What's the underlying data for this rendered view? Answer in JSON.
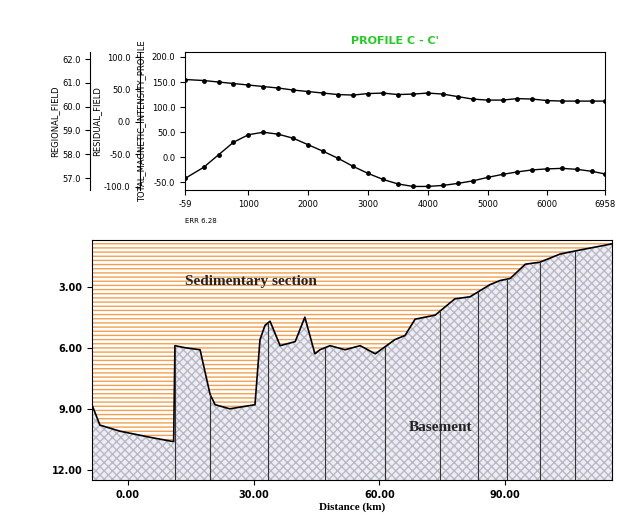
{
  "chart_data": [
    {
      "type": "line",
      "title": "PROFILE C - C'",
      "annotations": [
        "ERR 6.28"
      ],
      "x": [
        -59,
        250,
        500,
        750,
        1000,
        1250,
        1500,
        1750,
        2000,
        2250,
        2500,
        2750,
        3000,
        3250,
        3500,
        3750,
        4000,
        4250,
        4500,
        4750,
        5000,
        5250,
        5500,
        5750,
        6000,
        6250,
        6500,
        6750,
        6958
      ],
      "series": [
        {
          "color": "#000000",
          "marker": "o",
          "line_style": "solid",
          "values": [
            155,
            153,
            150,
            147,
            144,
            141,
            138,
            134,
            131,
            128,
            125,
            124,
            127,
            128,
            125,
            126,
            128,
            126,
            121,
            116,
            114,
            114,
            117,
            116,
            113,
            112,
            112,
            112,
            112
          ]
        },
        {
          "color": "#000000",
          "marker": "o",
          "line_style": "solid",
          "values": [
            -42,
            -20,
            5,
            30,
            45,
            50,
            46,
            38,
            25,
            12,
            -2,
            -18,
            -32,
            -44,
            -53,
            -58,
            -58,
            -56,
            -52,
            -47,
            -40,
            -34,
            -29,
            -25,
            -23,
            -22,
            -24,
            -28,
            -33
          ]
        }
      ],
      "xlim": [
        -59,
        6958
      ],
      "xticks": [
        -59,
        1000,
        2000,
        3000,
        4000,
        5000,
        6000,
        6958
      ],
      "ylabel": "TOTAL_MAGNETIC_INTENSITY_PROFILE",
      "ylim": [
        -65,
        210
      ],
      "yticks": [
        {
          "value": -50,
          "label": "-50.0"
        },
        {
          "value": 0,
          "label": "0.0"
        },
        {
          "value": 50,
          "label": "50.0"
        },
        {
          "value": 100,
          "label": "100.0"
        },
        {
          "value": 150,
          "label": "150.0"
        },
        {
          "value": 200,
          "label": "200.0"
        }
      ],
      "y2label": "RESIDUAL_FIELD",
      "y2lim": [
        -105,
        108
      ],
      "y2ticks": [
        {
          "value": -100,
          "label": "-100.0"
        },
        {
          "value": -50,
          "label": "-50.0"
        },
        {
          "value": 0,
          "label": "0.0"
        },
        {
          "value": 50,
          "label": "50.0"
        },
        {
          "value": 100,
          "label": "100.0"
        }
      ],
      "y3label": "REGIONAL_FIELD",
      "y3lim": [
        56.5,
        62.3
      ],
      "y3ticks": [
        {
          "value": 57,
          "label": "57.0"
        },
        {
          "value": 58,
          "label": "58.0"
        },
        {
          "value": 59,
          "label": "59.0"
        },
        {
          "value": 60,
          "label": "60.0"
        },
        {
          "value": 61,
          "label": "61.0"
        },
        {
          "value": 62,
          "label": "62.0"
        }
      ]
    },
    {
      "type": "area",
      "xlabel": "Distance (km)",
      "annotations": [
        "Sedimentary section",
        "Basement"
      ],
      "x": [
        -8.6,
        -6.7,
        -1.9,
        5.3,
        10.5,
        10.9,
        11.2,
        13.6,
        17.2,
        19.6,
        20.8,
        24.3,
        30.3,
        31.5,
        32.7,
        33.9,
        36.3,
        39.9,
        42.2,
        44.6,
        45.8,
        48.2,
        51.8,
        55.4,
        59.0,
        63.7,
        66.1,
        68.5,
        73.3,
        78.0,
        81.6,
        86.4,
        88.8,
        91.2,
        94.8,
        98.3,
        103.1,
        107.9,
        115.5
      ],
      "values": [
        8.8,
        9.8,
        10.1,
        10.4,
        10.6,
        10.6,
        5.9,
        6.0,
        6.1,
        8.3,
        8.8,
        9.0,
        8.8,
        5.6,
        4.9,
        4.7,
        5.9,
        5.7,
        4.5,
        6.3,
        6.1,
        5.9,
        6.1,
        5.9,
        6.3,
        5.6,
        5.4,
        4.6,
        4.4,
        3.6,
        3.5,
        2.9,
        2.7,
        2.6,
        1.9,
        1.8,
        1.4,
        1.2,
        0.9
      ],
      "faults": [
        11.2,
        19.6,
        33.4,
        47.0,
        61.3,
        74.5,
        83.5,
        90.5,
        98.3,
        106.7
      ],
      "xlim": [
        -8.6,
        115.5
      ],
      "xticks": [
        {
          "value": 0,
          "label": "0.00"
        },
        {
          "value": 30,
          "label": "30.00"
        },
        {
          "value": 60,
          "label": "60.00"
        },
        {
          "value": 90,
          "label": "90.00"
        }
      ],
      "ylim": [
        12.5,
        0.7
      ],
      "yticks": [
        {
          "value": 3,
          "label": "3.00"
        },
        {
          "value": 6,
          "label": "6.00"
        },
        {
          "value": 9,
          "label": "9.00"
        },
        {
          "value": 12,
          "label": "12.00"
        }
      ]
    }
  ]
}
